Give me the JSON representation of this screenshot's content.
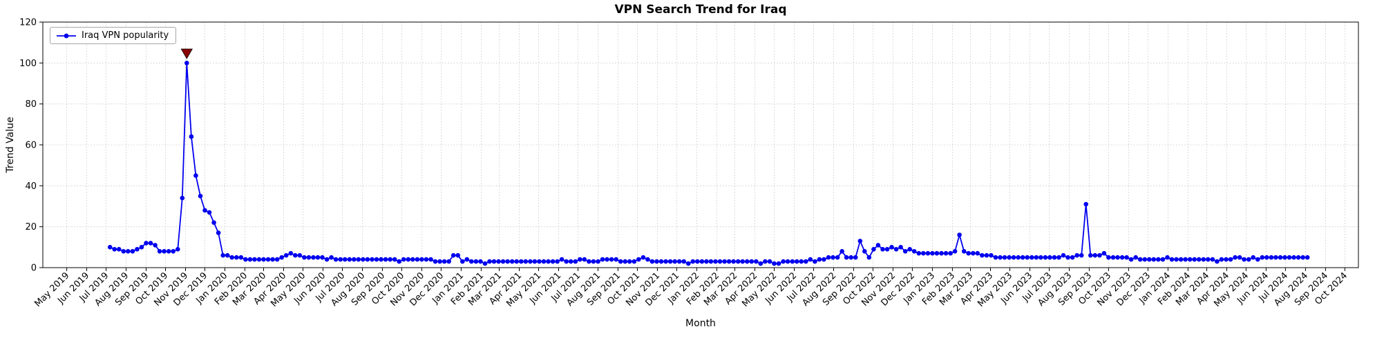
{
  "chart_data": {
    "type": "line",
    "title": "VPN Search Trend for Iraq",
    "xlabel": "Month",
    "ylabel": "Trend Value",
    "ylim": [
      0,
      120
    ],
    "y_ticks": [
      0,
      20,
      40,
      60,
      80,
      100,
      120
    ],
    "xlim": [
      "2019-03-25",
      "2024-10-22"
    ],
    "x_ticks": [
      "May 2019",
      "Jun 2019",
      "Jul 2019",
      "Aug 2019",
      "Sep 2019",
      "Oct 2019",
      "Nov 2019",
      "Dec 2019",
      "Jan 2020",
      "Feb 2020",
      "Mar 2020",
      "Apr 2020",
      "May 2020",
      "Jun 2020",
      "Jul 2020",
      "Aug 2020",
      "Sep 2020",
      "Oct 2020",
      "Nov 2020",
      "Dec 2020",
      "Jan 2021",
      "Feb 2021",
      "Mar 2021",
      "Apr 2021",
      "May 2021",
      "Jun 2021",
      "Jul 2021",
      "Aug 2021",
      "Sep 2021",
      "Oct 2021",
      "Nov 2021",
      "Dec 2021",
      "Jan 2022",
      "Feb 2022",
      "Mar 2022",
      "Apr 2022",
      "May 2022",
      "Jun 2022",
      "Jul 2022",
      "Aug 2022",
      "Sep 2022",
      "Oct 2022",
      "Nov 2022",
      "Dec 2022",
      "Jan 2023",
      "Feb 2023",
      "Mar 2023",
      "Apr 2023",
      "May 2023",
      "Jun 2023",
      "Jul 2023",
      "Aug 2023",
      "Sep 2023",
      "Oct 2023",
      "Nov 2023",
      "Dec 2023",
      "Jan 2024",
      "Feb 2024",
      "Mar 2024",
      "Apr 2024",
      "May 2024",
      "Jun 2024",
      "Jul 2024",
      "Aug 2024",
      "Sep 2024",
      "Oct 2024"
    ],
    "start_date": "2019-07-07",
    "step_days": 7,
    "grid": true,
    "grid_color": "#c3c3c3",
    "background": "#ffffff",
    "series": [
      {
        "name": "Iraq VPN popularity",
        "color": "#0000ee",
        "values": [
          10,
          9,
          9,
          8,
          8,
          8,
          9,
          10,
          12,
          12,
          11,
          8,
          8,
          8,
          8,
          9,
          34,
          100,
          64,
          45,
          35,
          28,
          27,
          22,
          17,
          6,
          6,
          5,
          5,
          5,
          4,
          4,
          4,
          4,
          4,
          4,
          4,
          4,
          5,
          6,
          7,
          6,
          6,
          5,
          5,
          5,
          5,
          5,
          4,
          5,
          4,
          4,
          4,
          4,
          4,
          4,
          4,
          4,
          4,
          4,
          4,
          4,
          4,
          4,
          3,
          4,
          4,
          4,
          4,
          4,
          4,
          4,
          3,
          3,
          3,
          3,
          6,
          6,
          3,
          4,
          3,
          3,
          3,
          2,
          3,
          3,
          3,
          3,
          3,
          3,
          3,
          3,
          3,
          3,
          3,
          3,
          3,
          3,
          3,
          3,
          4,
          3,
          3,
          3,
          4,
          4,
          3,
          3,
          3,
          4,
          4,
          4,
          4,
          3,
          3,
          3,
          3,
          4,
          5,
          4,
          3,
          3,
          3,
          3,
          3,
          3,
          3,
          3,
          2,
          3,
          3,
          3,
          3,
          3,
          3,
          3,
          3,
          3,
          3,
          3,
          3,
          3,
          3,
          3,
          2,
          3,
          3,
          2,
          2,
          3,
          3,
          3,
          3,
          3,
          3,
          4,
          3,
          4,
          4,
          5,
          5,
          5,
          8,
          5,
          5,
          5,
          13,
          8,
          5,
          9,
          11,
          9,
          9,
          10,
          9,
          10,
          8,
          9,
          8,
          7,
          7,
          7,
          7,
          7,
          7,
          7,
          7,
          8,
          16,
          8,
          7,
          7,
          7,
          6,
          6,
          6,
          5,
          5,
          5,
          5,
          5,
          5,
          5,
          5,
          5,
          5,
          5,
          5,
          5,
          5,
          5,
          6,
          5,
          5,
          6,
          6,
          31,
          6,
          6,
          6,
          7,
          5,
          5,
          5,
          5,
          5,
          4,
          5,
          4,
          4,
          4,
          4,
          4,
          4,
          5,
          4,
          4,
          4,
          4,
          4,
          4,
          4,
          4,
          4,
          4,
          3,
          4,
          4,
          4,
          5,
          5,
          4,
          4,
          5,
          4,
          5,
          5,
          5,
          5,
          5,
          5,
          5,
          5,
          5,
          5,
          5
        ]
      }
    ],
    "annotation": {
      "shape": "triangle-down",
      "color": "#8B0000",
      "index": 17,
      "y_value": 104.5
    }
  }
}
